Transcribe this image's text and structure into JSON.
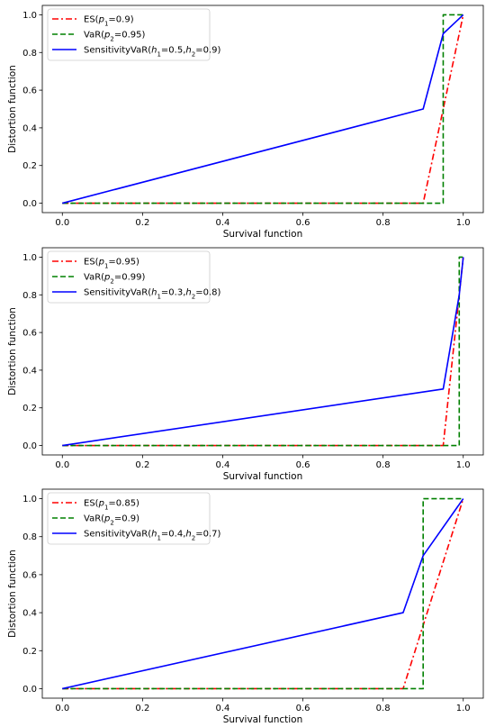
{
  "chart_data": [
    {
      "type": "line",
      "title": "",
      "xlabel": "Survival function",
      "ylabel": "Distortion function",
      "xlim": [
        -0.05,
        1.05
      ],
      "ylim": [
        -0.05,
        1.05
      ],
      "xticks": [
        "0.0",
        "0.2",
        "0.4",
        "0.6",
        "0.8",
        "1.0"
      ],
      "yticks": [
        "0.0",
        "0.2",
        "0.4",
        "0.6",
        "0.8",
        "1.0"
      ],
      "grid": false,
      "legend_position": "upper-left",
      "series": [
        {
          "name": "ES(p₁=0.9)",
          "color": "#ff0000",
          "style": "dashdot",
          "x": [
            0,
            0.9,
            1.0
          ],
          "y": [
            0,
            0,
            1.0
          ]
        },
        {
          "name": "VaR(p₂=0.95)",
          "color": "#008000",
          "style": "dashed",
          "x": [
            0,
            0.95,
            0.95,
            1.0
          ],
          "y": [
            0,
            0,
            1.0,
            1.0
          ]
        },
        {
          "name": "SensitivityVaR(h₁=0.5,h₂=0.9)",
          "color": "#0000ff",
          "style": "solid",
          "x": [
            0,
            0.9,
            0.95,
            1.0
          ],
          "y": [
            0,
            0.5,
            0.9,
            1.0
          ]
        }
      ]
    },
    {
      "type": "line",
      "title": "",
      "xlabel": "Survival function",
      "ylabel": "Distortion function",
      "xlim": [
        -0.05,
        1.05
      ],
      "ylim": [
        -0.05,
        1.05
      ],
      "xticks": [
        "0.0",
        "0.2",
        "0.4",
        "0.6",
        "0.8",
        "1.0"
      ],
      "yticks": [
        "0.0",
        "0.2",
        "0.4",
        "0.6",
        "0.8",
        "1.0"
      ],
      "grid": false,
      "legend_position": "upper-left",
      "series": [
        {
          "name": "ES(p₁=0.95)",
          "color": "#ff0000",
          "style": "dashdot",
          "x": [
            0,
            0.95,
            1.0
          ],
          "y": [
            0,
            0,
            1.0
          ]
        },
        {
          "name": "VaR(p₂=0.99)",
          "color": "#008000",
          "style": "dashed",
          "x": [
            0,
            0.99,
            0.99,
            1.0
          ],
          "y": [
            0,
            0,
            1.0,
            1.0
          ]
        },
        {
          "name": "SensitivityVaR(h₁=0.3,h₂=0.8)",
          "color": "#0000ff",
          "style": "solid",
          "x": [
            0,
            0.95,
            0.99,
            1.0
          ],
          "y": [
            0,
            0.3,
            0.8,
            1.0
          ]
        }
      ]
    },
    {
      "type": "line",
      "title": "",
      "xlabel": "Survival function",
      "ylabel": "Distortion function",
      "xlim": [
        -0.05,
        1.05
      ],
      "ylim": [
        -0.05,
        1.05
      ],
      "xticks": [
        "0.0",
        "0.2",
        "0.4",
        "0.6",
        "0.8",
        "1.0"
      ],
      "yticks": [
        "0.0",
        "0.2",
        "0.4",
        "0.6",
        "0.8",
        "1.0"
      ],
      "grid": false,
      "legend_position": "upper-left",
      "series": [
        {
          "name": "ES(p₁=0.85)",
          "color": "#ff0000",
          "style": "dashdot",
          "x": [
            0,
            0.85,
            1.0
          ],
          "y": [
            0,
            0,
            1.0
          ]
        },
        {
          "name": "VaR(p₂=0.9)",
          "color": "#008000",
          "style": "dashed",
          "x": [
            0,
            0.9,
            0.9,
            1.0
          ],
          "y": [
            0,
            0,
            1.0,
            1.0
          ]
        },
        {
          "name": "SensitivityVaR(h₁=0.4,h₂=0.7)",
          "color": "#0000ff",
          "style": "solid",
          "x": [
            0,
            0.85,
            0.9,
            1.0
          ],
          "y": [
            0,
            0.4,
            0.7,
            1.0
          ]
        }
      ]
    }
  ]
}
